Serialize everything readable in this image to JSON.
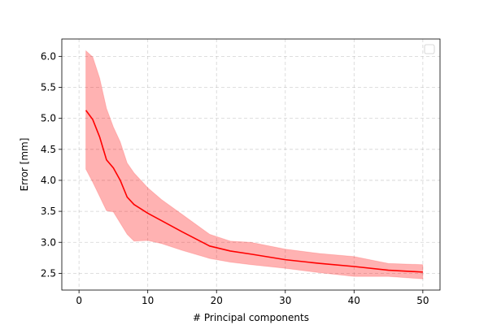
{
  "chart_data": {
    "type": "line",
    "title": "",
    "xlabel": "# Principal components",
    "ylabel": "Error [mm]",
    "xlim": [
      -2.5,
      52.5
    ],
    "ylim": [
      2.23,
      6.28
    ],
    "xticks": [
      0,
      10,
      20,
      30,
      40,
      50
    ],
    "yticks": [
      2.5,
      3.0,
      3.5,
      4.0,
      4.5,
      5.0,
      5.5,
      6.0
    ],
    "xtick_labels": [
      "0",
      "10",
      "20",
      "30",
      "40",
      "50"
    ],
    "ytick_labels": [
      "2.5",
      "3.0",
      "3.5",
      "4.0",
      "4.5",
      "5.0",
      "5.5",
      "6.0"
    ],
    "grid": true,
    "legend": "top-right (empty)",
    "series": [
      {
        "type": "line",
        "color": "#ff0000",
        "x": [
          1,
          2,
          3,
          4,
          5,
          6,
          7,
          8,
          10,
          12,
          15,
          19,
          22,
          25,
          30,
          35,
          40,
          45,
          50
        ],
        "y": [
          5.13,
          4.98,
          4.7,
          4.33,
          4.2,
          4.0,
          3.73,
          3.61,
          3.47,
          3.35,
          3.17,
          2.94,
          2.86,
          2.81,
          2.72,
          2.66,
          2.61,
          2.55,
          2.52
        ]
      },
      {
        "type": "band",
        "color": "#ff0000",
        "opacity": 0.3,
        "x": [
          1,
          2,
          3,
          4,
          5,
          6,
          7,
          8,
          10,
          12,
          15,
          19,
          22,
          25,
          30,
          35,
          40,
          45,
          50
        ],
        "upper": [
          6.09,
          5.99,
          5.65,
          5.16,
          4.86,
          4.62,
          4.28,
          4.12,
          3.88,
          3.69,
          3.45,
          3.13,
          3.02,
          3.0,
          2.89,
          2.82,
          2.77,
          2.66,
          2.64
        ],
        "lower": [
          4.18,
          3.97,
          3.74,
          3.51,
          3.49,
          3.31,
          3.13,
          3.02,
          3.03,
          2.98,
          2.87,
          2.74,
          2.68,
          2.64,
          2.58,
          2.51,
          2.45,
          2.45,
          2.41
        ]
      }
    ]
  }
}
